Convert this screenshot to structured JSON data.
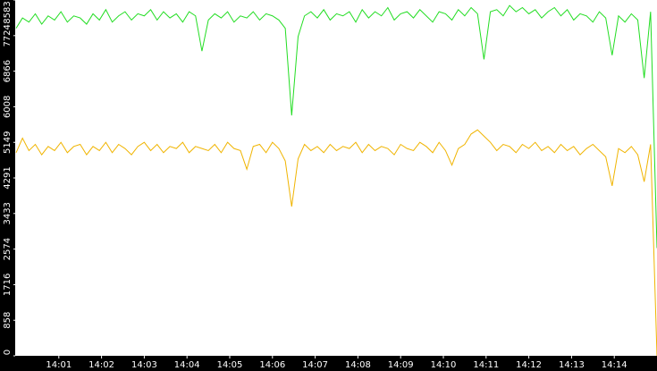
{
  "chart_data": {
    "type": "line",
    "x": [
      840,
      840.15,
      840.3,
      840.45,
      840.6,
      840.75,
      840.9,
      841.05,
      841.2,
      841.35,
      841.5,
      841.65,
      841.8,
      841.95,
      842.1,
      842.25,
      842.4,
      842.55,
      842.7,
      842.85,
      843,
      843.15,
      843.3,
      843.45,
      843.6,
      843.75,
      843.9,
      844.05,
      844.2,
      844.35,
      844.5,
      844.65,
      844.8,
      844.95,
      845.1,
      845.25,
      845.4,
      845.55,
      845.7,
      845.85,
      846,
      846.15,
      846.3,
      846.45,
      846.6,
      846.75,
      846.9,
      847.05,
      847.2,
      847.35,
      847.5,
      847.65,
      847.8,
      847.95,
      848.1,
      848.25,
      848.4,
      848.55,
      848.7,
      848.85,
      849,
      849.15,
      849.3,
      849.45,
      849.6,
      849.75,
      849.9,
      850.05,
      850.2,
      850.35,
      850.5,
      850.65,
      850.8,
      850.95,
      851.1,
      851.25,
      851.4,
      851.55,
      851.7,
      851.85,
      852,
      852.15,
      852.3,
      852.45,
      852.6,
      852.75,
      852.9,
      853.05,
      853.2,
      853.35,
      853.5,
      853.65,
      853.8,
      853.95,
      854.1,
      854.25,
      854.4,
      854.55,
      854.7,
      854.85,
      855
    ],
    "series": [
      {
        "color": "#22dd22",
        "values": [
          7900,
          8150,
          8050,
          8250,
          8000,
          8200,
          8100,
          8300,
          8050,
          8200,
          8150,
          8000,
          8250,
          8100,
          8350,
          8050,
          8200,
          8300,
          8100,
          8250,
          8200,
          8350,
          8100,
          8300,
          8150,
          8250,
          8050,
          8300,
          8200,
          7350,
          8100,
          8250,
          8150,
          8300,
          8050,
          8200,
          8150,
          8300,
          8100,
          8250,
          8200,
          8100,
          7900,
          5800,
          7700,
          8200,
          8300,
          8150,
          8350,
          8100,
          8250,
          8200,
          8300,
          8050,
          8350,
          8150,
          8300,
          8200,
          8400,
          8100,
          8250,
          8300,
          8150,
          8350,
          8200,
          8050,
          8300,
          8250,
          8100,
          8350,
          8200,
          8400,
          8250,
          7150,
          8300,
          8350,
          8200,
          8450,
          8300,
          8400,
          8250,
          8350,
          8150,
          8300,
          8400,
          8200,
          8350,
          8100,
          8250,
          8200,
          8050,
          8300,
          8150,
          7250,
          8200,
          8050,
          8250,
          8100,
          6700,
          8300,
          2600
        ]
      },
      {
        "color": "#f0b400",
        "values": [
          4900,
          5250,
          4950,
          5100,
          4850,
          5050,
          4950,
          5150,
          4900,
          5050,
          5100,
          4850,
          5050,
          4950,
          5150,
          4900,
          5100,
          5000,
          4850,
          5050,
          5150,
          4950,
          5100,
          4900,
          5050,
          5000,
          5150,
          4900,
          5050,
          5000,
          4950,
          5100,
          4900,
          5150,
          5000,
          4950,
          4500,
          5050,
          5100,
          4900,
          5150,
          5000,
          4700,
          3600,
          4750,
          5100,
          4950,
          5050,
          4900,
          5100,
          4950,
          5050,
          5000,
          5150,
          4900,
          5100,
          4950,
          5050,
          5000,
          4850,
          5100,
          5000,
          4950,
          5150,
          5050,
          4900,
          5150,
          4950,
          4600,
          5000,
          5100,
          5350,
          5450,
          5300,
          5150,
          4950,
          5100,
          5050,
          4900,
          5100,
          5000,
          5150,
          4950,
          5050,
          4900,
          5100,
          4950,
          5050,
          4850,
          5000,
          5100,
          4950,
          4800,
          4100,
          5000,
          4900,
          5050,
          4850,
          4200,
          5100,
          0
        ]
      }
    ],
    "xlim": [
      840,
      855
    ],
    "xticks": [
      {
        "value": 841,
        "label": "14:01"
      },
      {
        "value": 842,
        "label": "14:02"
      },
      {
        "value": 843,
        "label": "14:03"
      },
      {
        "value": 844,
        "label": "14:04"
      },
      {
        "value": 845,
        "label": "14:05"
      },
      {
        "value": 846,
        "label": "14:06"
      },
      {
        "value": 847,
        "label": "14:07"
      },
      {
        "value": 848,
        "label": "14:08"
      },
      {
        "value": 849,
        "label": "14:09"
      },
      {
        "value": 850,
        "label": "14:10"
      },
      {
        "value": 851,
        "label": "14:11"
      },
      {
        "value": 852,
        "label": "14:12"
      },
      {
        "value": 853,
        "label": "14:13"
      },
      {
        "value": 854,
        "label": "14:14"
      }
    ],
    "ylim": [
      0,
      8583
    ],
    "yticks": [
      0,
      858,
      1716,
      2574,
      3433,
      4291,
      5149,
      6008,
      6866,
      7724,
      8583
    ],
    "grid": false
  }
}
